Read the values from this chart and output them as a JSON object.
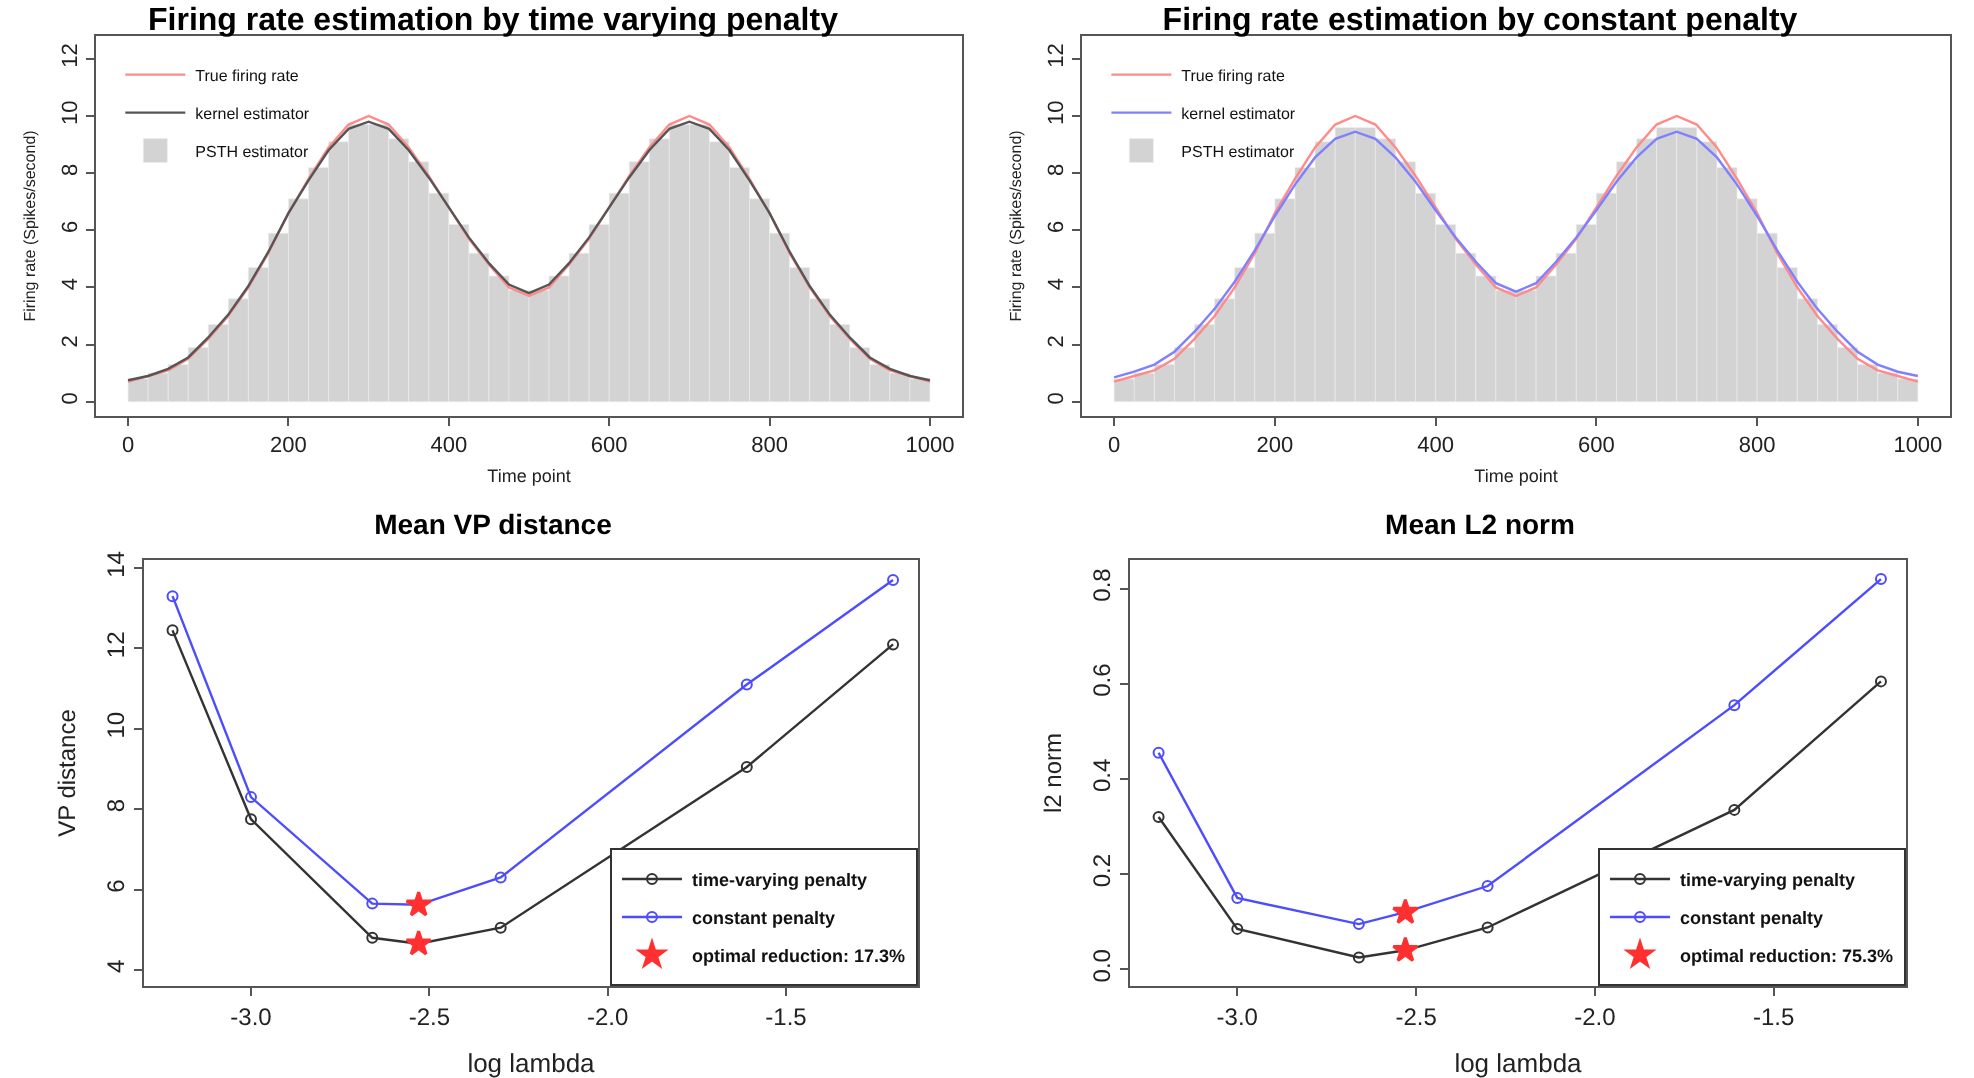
{
  "chart_data": [
    {
      "type": "line",
      "title": "Firing rate estimation by time varying penalty",
      "xlabel": "Time point",
      "ylabel": "Firing rate (Spikes/second)",
      "xlim": [
        -40,
        1040
      ],
      "ylim": [
        -0.5,
        12.8
      ],
      "xticks": [
        0,
        200,
        400,
        600,
        800,
        1000
      ],
      "yticks": [
        0,
        2,
        4,
        6,
        8,
        10,
        12
      ],
      "legend": "top left",
      "grid": false,
      "x": [
        0,
        25,
        50,
        75,
        100,
        125,
        150,
        175,
        200,
        225,
        250,
        275,
        300,
        325,
        350,
        375,
        400,
        425,
        450,
        475,
        500,
        525,
        550,
        575,
        600,
        625,
        650,
        675,
        700,
        725,
        750,
        775,
        800,
        825,
        850,
        875,
        900,
        925,
        950,
        975,
        1000
      ],
      "series": [
        {
          "name": "True firing rate",
          "color": "#ff8a8a",
          "values": [
            0.7,
            0.9,
            1.1,
            1.5,
            2.2,
            3.0,
            4.0,
            5.2,
            6.6,
            7.8,
            8.9,
            9.7,
            10.0,
            9.7,
            8.9,
            7.9,
            6.8,
            5.7,
            4.8,
            4.0,
            3.7,
            4.0,
            4.8,
            5.7,
            6.8,
            7.9,
            8.9,
            9.7,
            10.0,
            9.7,
            8.9,
            7.8,
            6.6,
            5.2,
            4.0,
            3.0,
            2.2,
            1.5,
            1.1,
            0.9,
            0.7
          ]
        },
        {
          "name": "kernel estimator",
          "color": "#555555",
          "values": [
            0.75,
            0.9,
            1.15,
            1.55,
            2.25,
            3.05,
            4.05,
            5.25,
            6.6,
            7.75,
            8.8,
            9.55,
            9.8,
            9.55,
            8.8,
            7.85,
            6.8,
            5.75,
            4.85,
            4.1,
            3.8,
            4.1,
            4.85,
            5.75,
            6.8,
            7.85,
            8.8,
            9.55,
            9.8,
            9.55,
            8.8,
            7.75,
            6.6,
            5.25,
            4.05,
            3.05,
            2.25,
            1.55,
            1.15,
            0.9,
            0.75
          ]
        },
        {
          "name": "PSTH estimator",
          "type": "histogram",
          "color": "#d3d3d3",
          "bins": [
            0,
            25,
            50,
            75,
            100,
            125,
            150,
            175,
            200,
            225,
            250,
            275,
            300,
            325,
            350,
            375,
            400,
            425,
            450,
            475,
            500,
            525,
            550,
            575,
            600,
            625,
            650,
            675,
            700,
            725,
            750,
            775,
            800,
            825,
            850,
            875,
            900,
            925,
            950,
            975,
            1000
          ],
          "values": [
            0.8,
            1.0,
            1.3,
            1.9,
            2.7,
            3.6,
            4.7,
            5.9,
            7.1,
            8.2,
            9.1,
            9.7,
            9.7,
            9.2,
            8.4,
            7.3,
            6.2,
            5.2,
            4.4,
            3.9,
            3.9,
            4.4,
            5.2,
            6.2,
            7.3,
            8.4,
            9.2,
            9.7,
            9.7,
            9.1,
            8.2,
            7.1,
            5.9,
            4.7,
            3.6,
            2.7,
            1.9,
            1.3,
            1.0,
            0.8
          ]
        }
      ]
    },
    {
      "type": "line",
      "title": "Firing rate estimation by constant penalty",
      "xlabel": "Time point",
      "ylabel": "Firing rate (Spikes/second)",
      "xlim": [
        -40,
        1040
      ],
      "ylim": [
        -0.5,
        12.8
      ],
      "xticks": [
        0,
        200,
        400,
        600,
        800,
        1000
      ],
      "yticks": [
        0,
        2,
        4,
        6,
        8,
        10,
        12
      ],
      "legend": "top left",
      "grid": false,
      "x": [
        0,
        25,
        50,
        75,
        100,
        125,
        150,
        175,
        200,
        225,
        250,
        275,
        300,
        325,
        350,
        375,
        400,
        425,
        450,
        475,
        500,
        525,
        550,
        575,
        600,
        625,
        650,
        675,
        700,
        725,
        750,
        775,
        800,
        825,
        850,
        875,
        900,
        925,
        950,
        975,
        1000
      ],
      "series": [
        {
          "name": "True firing rate",
          "color": "#ff8a8a",
          "values": [
            0.7,
            0.9,
            1.1,
            1.5,
            2.2,
            3.0,
            4.0,
            5.2,
            6.6,
            7.8,
            8.9,
            9.7,
            10.0,
            9.7,
            8.9,
            7.9,
            6.8,
            5.7,
            4.8,
            4.0,
            3.7,
            4.0,
            4.8,
            5.7,
            6.8,
            7.9,
            8.9,
            9.7,
            10.0,
            9.7,
            8.9,
            7.8,
            6.6,
            5.2,
            4.0,
            3.0,
            2.2,
            1.5,
            1.1,
            0.9,
            0.7
          ]
        },
        {
          "name": "kernel estimator",
          "color": "#8080ff",
          "values": [
            0.85,
            1.05,
            1.3,
            1.75,
            2.45,
            3.25,
            4.2,
            5.3,
            6.5,
            7.6,
            8.55,
            9.2,
            9.45,
            9.2,
            8.55,
            7.7,
            6.7,
            5.75,
            4.9,
            4.15,
            3.85,
            4.15,
            4.9,
            5.75,
            6.7,
            7.7,
            8.55,
            9.2,
            9.45,
            9.2,
            8.55,
            7.6,
            6.5,
            5.3,
            4.2,
            3.25,
            2.45,
            1.75,
            1.3,
            1.05,
            0.9
          ]
        },
        {
          "name": "PSTH estimator",
          "type": "histogram",
          "color": "#d3d3d3",
          "bins": [
            0,
            25,
            50,
            75,
            100,
            125,
            150,
            175,
            200,
            225,
            250,
            275,
            300,
            325,
            350,
            375,
            400,
            425,
            450,
            475,
            500,
            525,
            550,
            575,
            600,
            625,
            650,
            675,
            700,
            725,
            750,
            775,
            800,
            825,
            850,
            875,
            900,
            925,
            950,
            975,
            1000
          ],
          "values": [
            0.8,
            1.0,
            1.3,
            1.9,
            2.7,
            3.6,
            4.7,
            5.9,
            7.1,
            8.2,
            9.1,
            9.6,
            9.6,
            9.2,
            8.4,
            7.3,
            6.2,
            5.2,
            4.4,
            3.9,
            3.9,
            4.4,
            5.2,
            6.2,
            7.3,
            8.4,
            9.2,
            9.6,
            9.6,
            9.1,
            8.2,
            7.1,
            5.9,
            4.7,
            3.6,
            2.7,
            1.9,
            1.3,
            1.0,
            0.8
          ]
        }
      ]
    },
    {
      "type": "line",
      "title": "Mean VP distance",
      "xlabel": "log lambda",
      "ylabel": "VP distance",
      "xlim": [
        -3.3,
        -1.13
      ],
      "ylim": [
        3.6,
        14.2
      ],
      "xticks": [
        {
          "value": -3,
          "label": "-3.0"
        },
        {
          "value": -2.5,
          "label": "-2.5"
        },
        {
          "value": -2,
          "label": "-2.0"
        },
        {
          "value": -1.5,
          "label": "-1.5"
        }
      ],
      "yticks": [
        4,
        6,
        8,
        10,
        12,
        14
      ],
      "legend": "bottom right",
      "grid": false,
      "marker": "circle",
      "x": [
        -3.22,
        -3.0,
        -2.66,
        -2.53,
        -2.3,
        -1.61,
        -1.2
      ],
      "series": [
        {
          "name": "time-varying penalty",
          "color": "#333333",
          "values": [
            12.45,
            7.75,
            4.8,
            4.65,
            5.05,
            9.05,
            12.1
          ]
        },
        {
          "name": "constant penalty",
          "color": "#4d4dff",
          "values": [
            13.3,
            8.3,
            5.65,
            5.62,
            6.3,
            11.1,
            13.7
          ]
        },
        {
          "name": "optimal reduction: 17.3%",
          "type": "scatter",
          "marker": "star",
          "color": "#ff3030",
          "values": [
            null,
            null,
            null,
            4.65,
            null,
            null,
            null
          ]
        },
        {
          "type": "scatter",
          "marker": "star",
          "color": "#ff3030",
          "values": [
            null,
            null,
            null,
            5.62,
            null,
            null,
            null
          ]
        }
      ]
    },
    {
      "type": "line",
      "title": "Mean L2 norm",
      "xlabel": "log lambda",
      "ylabel": "l2 norm",
      "xlim": [
        -3.3,
        -1.13
      ],
      "ylim": [
        -0.035,
        0.86
      ],
      "xticks": [
        {
          "value": -3,
          "label": "-3.0"
        },
        {
          "value": -2.5,
          "label": "-2.5"
        },
        {
          "value": -2,
          "label": "-2.0"
        },
        {
          "value": -1.5,
          "label": "-1.5"
        }
      ],
      "yticks": [
        {
          "value": 0,
          "label": "0.0"
        },
        0.2,
        0.4,
        0.6,
        0.8
      ],
      "legend": "bottom right",
      "grid": false,
      "marker": "circle",
      "x": [
        -3.22,
        -3.0,
        -2.66,
        -2.53,
        -2.3,
        -1.61,
        -1.2
      ],
      "series": [
        {
          "name": "time-varying penalty",
          "color": "#333333",
          "values": [
            0.32,
            0.085,
            0.025,
            0.04,
            0.088,
            0.335,
            0.605
          ]
        },
        {
          "name": "constant penalty",
          "color": "#4d4dff",
          "values": [
            0.455,
            0.15,
            0.095,
            0.12,
            0.175,
            0.555,
            0.82
          ]
        },
        {
          "name": "optimal reduction: 75.3%",
          "type": "scatter",
          "marker": "star",
          "color": "#ff3030",
          "values": [
            null,
            null,
            null,
            0.04,
            null,
            null,
            null
          ]
        },
        {
          "type": "scatter",
          "marker": "star",
          "color": "#ff3030",
          "values": [
            null,
            null,
            null,
            0.12,
            null,
            null,
            null
          ]
        }
      ]
    }
  ]
}
